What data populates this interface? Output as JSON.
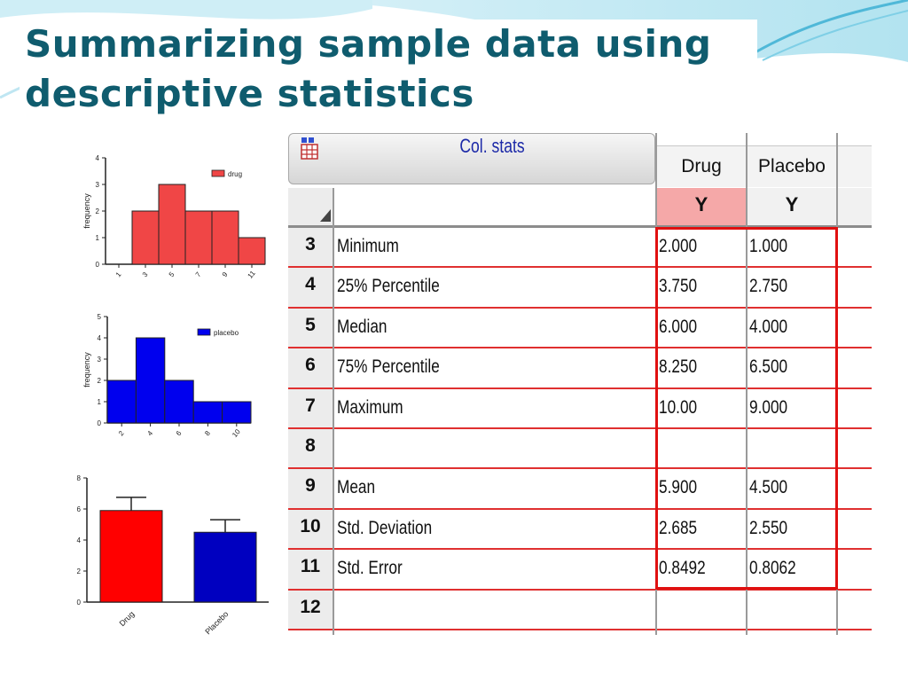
{
  "title": {
    "line1": "Summarizing sample data using",
    "line2": "descriptive statistics"
  },
  "colors": {
    "title": "#0f5c6e",
    "drug_hist": "#f04646",
    "placebo_hist": "#0000ee",
    "drug_bar": "#ff0000",
    "placebo_bar": "#0000c0",
    "highlight": "#e01010"
  },
  "chart_data": [
    {
      "type": "bar",
      "categories": [
        "1",
        "3",
        "5",
        "7",
        "9",
        "11"
      ],
      "values": [
        0,
        2,
        3,
        2,
        2,
        1
      ],
      "yticks": [
        "0",
        "1",
        "2",
        "3",
        "4"
      ],
      "ylim": [
        0,
        4
      ],
      "ylabel": "frequency",
      "legend": "drug",
      "legend_position": "top-right",
      "color": "#f04646"
    },
    {
      "type": "bar",
      "categories": [
        "2",
        "4",
        "6",
        "8",
        "10"
      ],
      "values": [
        2,
        4,
        2,
        1,
        1
      ],
      "yticks": [
        "0",
        "1",
        "2",
        "3",
        "4",
        "5"
      ],
      "ylim": [
        0,
        5
      ],
      "ylabel": "frequency",
      "legend": "placebo",
      "legend_position": "top-right",
      "color": "#0000ee"
    },
    {
      "type": "bar",
      "categories": [
        "Drug",
        "Placebo"
      ],
      "values": [
        5.9,
        4.5
      ],
      "error": [
        0.8492,
        0.8062
      ],
      "yticks": [
        "0",
        "2",
        "4",
        "6",
        "8"
      ],
      "ylim": [
        0,
        8
      ],
      "colors": [
        "#ff0000",
        "#0000c0"
      ]
    },
    {
      "type": "table",
      "title": "Col. stats",
      "columns": [
        "Drug",
        "Placebo"
      ],
      "ylabels": [
        "Y",
        "Y"
      ],
      "rows": [
        {
          "num": "3",
          "label": "Minimum",
          "values": [
            "2.000",
            "1.000"
          ]
        },
        {
          "num": "4",
          "label": "25% Percentile",
          "values": [
            "3.750",
            "2.750"
          ]
        },
        {
          "num": "5",
          "label": "Median",
          "values": [
            "6.000",
            "4.000"
          ]
        },
        {
          "num": "6",
          "label": "75% Percentile",
          "values": [
            "8.250",
            "6.500"
          ]
        },
        {
          "num": "7",
          "label": "Maximum",
          "values": [
            "10.00",
            "9.000"
          ]
        },
        {
          "num": "8",
          "label": "",
          "values": [
            "",
            ""
          ]
        },
        {
          "num": "9",
          "label": "Mean",
          "values": [
            "5.900",
            "4.500"
          ]
        },
        {
          "num": "10",
          "label": "Std. Deviation",
          "values": [
            "2.685",
            "2.550"
          ]
        },
        {
          "num": "11",
          "label": "Std. Error",
          "values": [
            "0.8492",
            "0.8062"
          ]
        },
        {
          "num": "12",
          "label": "",
          "values": [
            "",
            ""
          ]
        }
      ]
    }
  ]
}
